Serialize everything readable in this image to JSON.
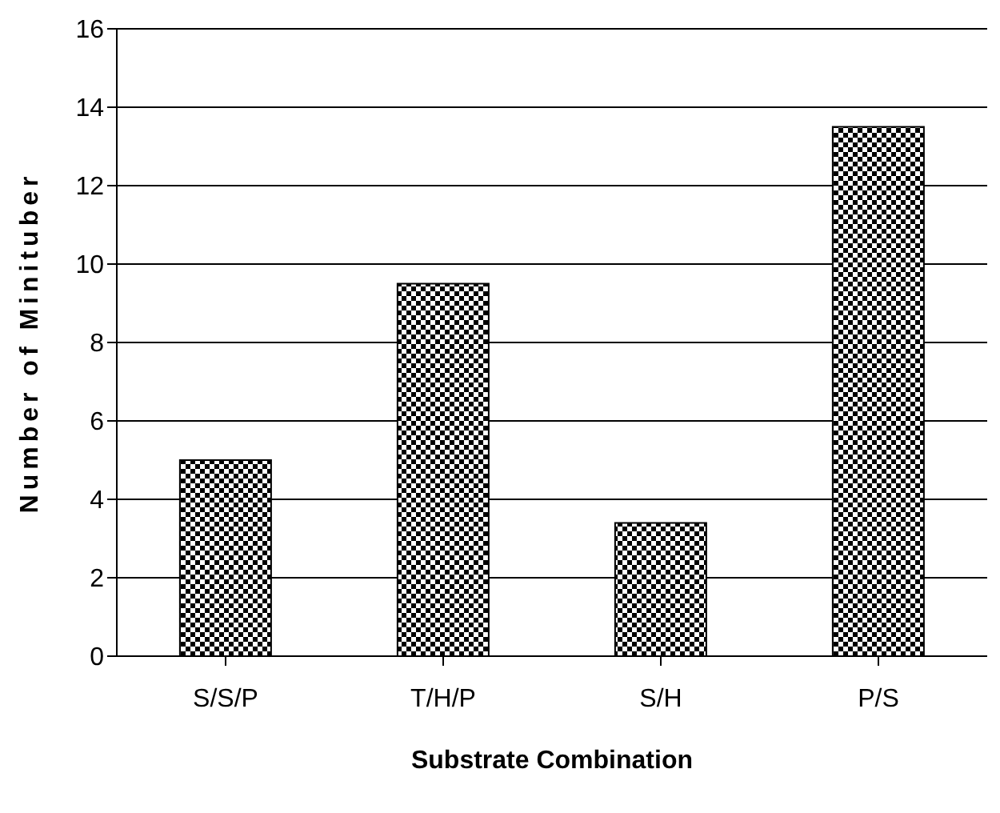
{
  "chart_data": {
    "type": "bar",
    "xlabel": "Substrate Combination",
    "ylabel": "Number of Minituber",
    "categories": [
      "S/S/P",
      "T/H/P",
      "S/H",
      "P/S"
    ],
    "values": [
      5,
      9.5,
      3.4,
      13.5
    ],
    "color": "#000000",
    "ylim": [
      0,
      16
    ],
    "yticks": [
      0,
      2,
      4,
      6,
      8,
      10,
      12,
      14,
      16
    ],
    "grid": "y"
  }
}
